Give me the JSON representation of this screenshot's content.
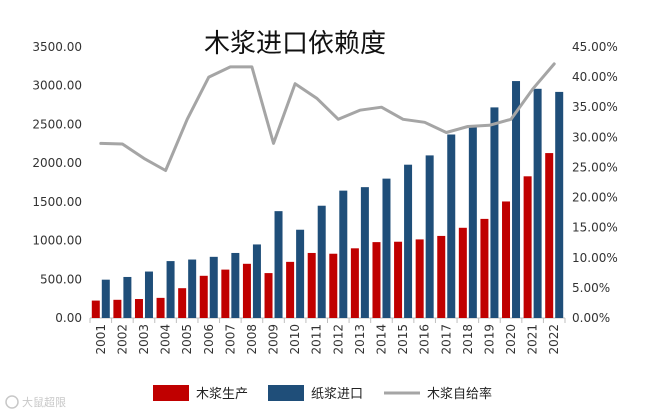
{
  "chart_data": {
    "type": "bar+line",
    "title": "木浆进口依赖度",
    "categories": [
      "2001",
      "2002",
      "2003",
      "2004",
      "2005",
      "2006",
      "2007",
      "2008",
      "2009",
      "2010",
      "2011",
      "2012",
      "2013",
      "2014",
      "2015",
      "2016",
      "2017",
      "2018",
      "2019",
      "2020",
      "2021",
      "2022"
    ],
    "series": [
      {
        "name": "木浆生产",
        "type": "bar",
        "axis": "left",
        "color": "#C00000",
        "values": [
          225,
          235,
          245,
          260,
          385,
          545,
          625,
          700,
          580,
          725,
          840,
          830,
          900,
          980,
          985,
          1015,
          1060,
          1165,
          1280,
          1505,
          1830,
          2130
        ]
      },
      {
        "name": "纸浆进口",
        "type": "bar",
        "axis": "left",
        "color": "#1F4E79",
        "values": [
          495,
          530,
          600,
          735,
          755,
          790,
          840,
          950,
          1380,
          1140,
          1450,
          1645,
          1690,
          1800,
          1980,
          2100,
          2370,
          2480,
          2720,
          3060,
          2960,
          2920
        ]
      },
      {
        "name": "木浆自给率",
        "type": "line",
        "axis": "right",
        "color": "#A5A5A5",
        "values": [
          29.0,
          28.9,
          26.5,
          24.5,
          33.0,
          40.0,
          41.7,
          41.7,
          29.0,
          38.9,
          36.5,
          33.0,
          34.5,
          35.0,
          33.0,
          32.5,
          30.8,
          31.8,
          32.0,
          33.0,
          38.0,
          42.2
        ]
      }
    ],
    "yLeft": {
      "min": 0,
      "max": 3500,
      "step": 500,
      "tick_labels": [
        "0.00",
        "500.00",
        "1000.00",
        "1500.00",
        "2000.00",
        "2500.00",
        "3000.00",
        "3500.00"
      ]
    },
    "yRight": {
      "min": 0,
      "max": 45,
      "step": 5,
      "tick_labels": [
        "0.00%",
        "5.00%",
        "10.00%",
        "15.00%",
        "20.00%",
        "25.00%",
        "30.00%",
        "35.00%",
        "40.00%",
        "45.00%"
      ]
    },
    "legend": [
      "木浆生产",
      "纸浆进口",
      "木浆自给率"
    ],
    "legend_position": "bottom",
    "grid": false
  },
  "watermark": "大鼠超限"
}
